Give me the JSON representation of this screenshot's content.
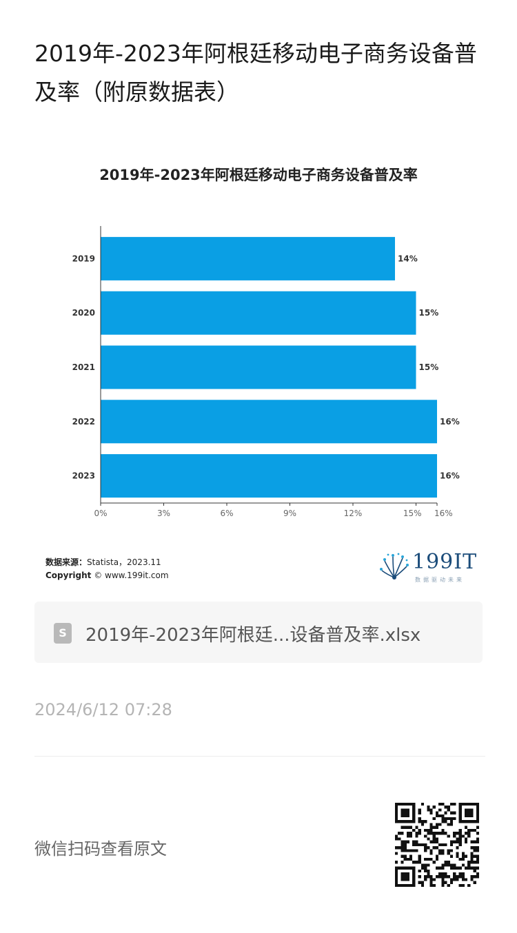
{
  "article": {
    "title": "2019年-2023年阿根廷移动电子商务设备普及率（附原数据表）",
    "attachment_name": "2019年-2023年阿根廷...设备普及率.xlsx",
    "file_icon_letter": "S",
    "timestamp": "2024/6/12 07:28",
    "read_original_label": "微信扫码查看原文"
  },
  "chart_footer": {
    "source_label": "数据来源：",
    "source_value": "Statista，2023.11",
    "copyright_label": "Copyright",
    "copyright_value": "© www.199it.com"
  },
  "logo": {
    "name": "199IT",
    "tagline": "数据驱动未来"
  },
  "colors": {
    "bar": "#0a9fe4",
    "axis": "#333333"
  },
  "chart_data": {
    "type": "bar",
    "orientation": "horizontal",
    "title": "2019年-2023年阿根廷移动电子商务设备普及率",
    "categories": [
      "2019",
      "2020",
      "2021",
      "2022",
      "2023"
    ],
    "values": [
      14,
      15,
      15,
      16,
      16
    ],
    "data_labels": [
      "14%",
      "15%",
      "15%",
      "16%",
      "16%"
    ],
    "x_ticks": [
      0,
      3,
      6,
      9,
      12,
      15,
      16
    ],
    "x_tick_labels": [
      "0%",
      "3%",
      "6%",
      "9%",
      "12%",
      "15%",
      "16%"
    ],
    "xlim": [
      0,
      16
    ],
    "xlabel": "",
    "ylabel": "",
    "grid": false,
    "legend": false
  }
}
